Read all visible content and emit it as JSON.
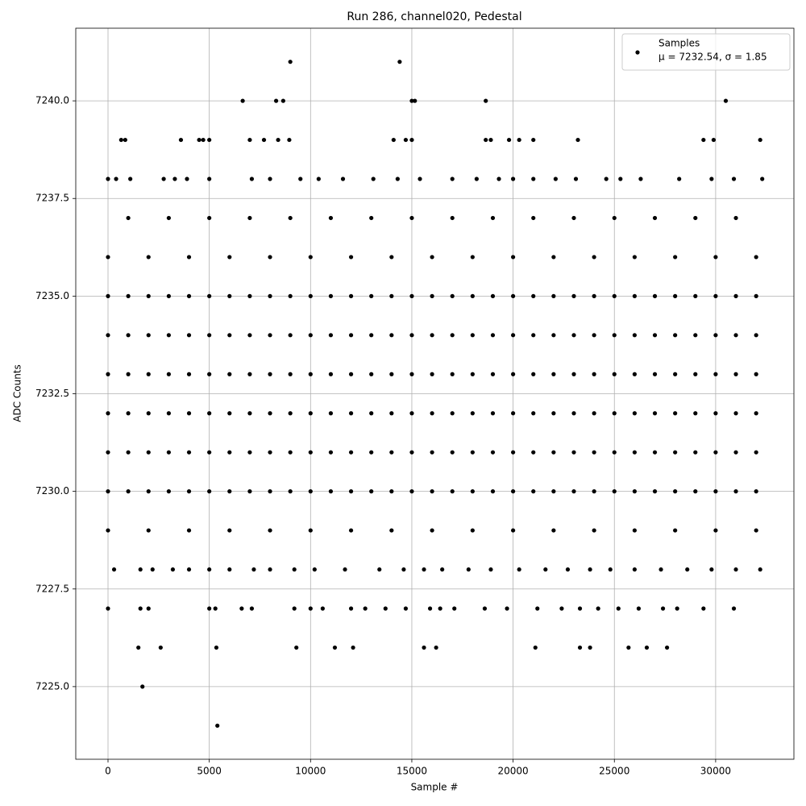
{
  "chart_data": {
    "type": "scatter",
    "title": "Run 286, channel020, Pedestal",
    "x_label": "Sample #",
    "y_label": "ADC Counts",
    "legend_note": "μ = 7232.54, σ = 1.85",
    "legend_loc": "upper right",
    "grid": true,
    "xlim": [
      -1592,
      33864
    ],
    "ylim": [
      7223.14,
      7241.86
    ],
    "xticks": [
      0,
      5000,
      10000,
      15000,
      20000,
      25000,
      30000
    ],
    "yticks": [
      {
        "value": 7225,
        "label": "7225.0"
      },
      {
        "value": 7227.5,
        "label": "7227.5"
      },
      {
        "value": 7230,
        "label": "7230.0"
      },
      {
        "value": 7232.5,
        "label": "7232.5"
      },
      {
        "value": 7235,
        "label": "7235.0"
      },
      {
        "value": 7237.5,
        "label": "7237.5"
      },
      {
        "value": 7240,
        "label": "7240.0"
      }
    ],
    "series": [
      {
        "name": "Samples",
        "color": "#000000",
        "x": [
          0,
          1000,
          2000,
          3000,
          4000,
          5000,
          6000,
          7000,
          8000,
          9000,
          10000,
          11000,
          12000,
          13000,
          14000,
          15000,
          16000,
          17000,
          18000,
          19000,
          20000,
          21000,
          22000,
          23000,
          24000,
          25000,
          26000,
          27000,
          28000,
          29000,
          30000,
          31000,
          32000,
          0,
          1000,
          2000,
          3000,
          4000,
          5000,
          6000,
          7000,
          8000,
          9000,
          10000,
          11000,
          12000,
          13000,
          14000,
          15000,
          16000,
          17000,
          18000,
          19000,
          20000,
          21000,
          22000,
          23000,
          24000,
          25000,
          26000,
          27000,
          28000,
          29000,
          30000,
          31000,
          32000,
          0,
          1000,
          2000,
          3000,
          4000,
          5000,
          6000,
          7000,
          8000,
          9000,
          10000,
          11000,
          12000,
          13000,
          14000,
          15000,
          16000,
          17000,
          18000,
          19000,
          20000,
          21000,
          22000,
          23000,
          24000,
          25000,
          26000,
          27000,
          28000,
          29000,
          30000,
          31000,
          32000,
          0,
          1000,
          2000,
          3000,
          4000,
          5000,
          6000,
          7000,
          8000,
          9000,
          10000,
          11000,
          12000,
          13000,
          14000,
          15000,
          16000,
          17000,
          18000,
          19000,
          20000,
          21000,
          22000,
          23000,
          24000,
          25000,
          26000,
          27000,
          28000,
          29000,
          30000,
          31000,
          32000,
          0,
          1000,
          2000,
          3000,
          4000,
          5000,
          6000,
          7000,
          8000,
          9000,
          10000,
          11000,
          12000,
          13000,
          14000,
          15000,
          16000,
          17000,
          18000,
          19000,
          20000,
          21000,
          22000,
          23000,
          24000,
          25000,
          26000,
          27000,
          28000,
          29000,
          30000,
          31000,
          32000,
          0,
          1000,
          2000,
          3000,
          4000,
          5000,
          6000,
          7000,
          8000,
          9000,
          10000,
          11000,
          12000,
          13000,
          14000,
          15000,
          16000,
          17000,
          18000,
          19000,
          20000,
          21000,
          22000,
          23000,
          24000,
          25000,
          26000,
          27000,
          28000,
          29000,
          30000,
          31000,
          32000,
          0,
          2000,
          4000,
          6000,
          8000,
          10000,
          12000,
          14000,
          16000,
          18000,
          20000,
          22000,
          24000,
          26000,
          28000,
          30000,
          32000,
          0,
          2000,
          4000,
          6000,
          8000,
          10000,
          12000,
          14000,
          16000,
          18000,
          20000,
          22000,
          24000,
          26000,
          28000,
          30000,
          32000,
          1000,
          3000,
          5000,
          7000,
          9000,
          11000,
          13000,
          15000,
          17000,
          19000,
          21000,
          23000,
          25000,
          27000,
          29000,
          31000,
          0,
          400,
          1100,
          2750,
          3300,
          3900,
          5000,
          7100,
          8000,
          9500,
          10400,
          11600,
          13100,
          14300,
          15400,
          17000,
          18200,
          19300,
          20000,
          21000,
          22100,
          23100,
          24600,
          25300,
          26300,
          28200,
          29800,
          30900,
          32300,
          650,
          850,
          3600,
          4500,
          4700,
          5000,
          7000,
          7700,
          8400,
          8950,
          14100,
          14700,
          15000,
          18650,
          18900,
          19800,
          20300,
          21000,
          23200,
          29400,
          29900,
          32200,
          6650,
          8300,
          8650,
          15000,
          15150,
          18650,
          30500,
          9000,
          14400,
          300,
          1600,
          2200,
          3200,
          4000,
          5000,
          6000,
          7200,
          8000,
          9200,
          10200,
          11700,
          13400,
          14600,
          15600,
          16500,
          17800,
          18900,
          20300,
          21600,
          22700,
          23800,
          24800,
          26000,
          27300,
          28600,
          29800,
          31000,
          32200,
          0,
          1600,
          2000,
          5000,
          5300,
          6600,
          7100,
          9200,
          10000,
          10600,
          12000,
          12700,
          13700,
          14700,
          15900,
          16400,
          17100,
          18600,
          19700,
          21200,
          22400,
          23300,
          24200,
          25200,
          26200,
          27400,
          28100,
          29400,
          30900,
          1500,
          2600,
          5350,
          9300,
          11200,
          12100,
          15600,
          16200,
          21100,
          23300,
          23800,
          25700,
          26600,
          27600,
          1700,
          5400
        ],
        "values": [
          7230,
          7230,
          7230,
          7230,
          7230,
          7230,
          7230,
          7230,
          7230,
          7230,
          7230,
          7230,
          7230,
          7230,
          7230,
          7230,
          7230,
          7230,
          7230,
          7230,
          7230,
          7230,
          7230,
          7230,
          7230,
          7230,
          7230,
          7230,
          7230,
          7230,
          7230,
          7230,
          7230,
          7231,
          7231,
          7231,
          7231,
          7231,
          7231,
          7231,
          7231,
          7231,
          7231,
          7231,
          7231,
          7231,
          7231,
          7231,
          7231,
          7231,
          7231,
          7231,
          7231,
          7231,
          7231,
          7231,
          7231,
          7231,
          7231,
          7231,
          7231,
          7231,
          7231,
          7231,
          7231,
          7231,
          7232,
          7232,
          7232,
          7232,
          7232,
          7232,
          7232,
          7232,
          7232,
          7232,
          7232,
          7232,
          7232,
          7232,
          7232,
          7232,
          7232,
          7232,
          7232,
          7232,
          7232,
          7232,
          7232,
          7232,
          7232,
          7232,
          7232,
          7232,
          7232,
          7232,
          7232,
          7232,
          7232,
          7233,
          7233,
          7233,
          7233,
          7233,
          7233,
          7233,
          7233,
          7233,
          7233,
          7233,
          7233,
          7233,
          7233,
          7233,
          7233,
          7233,
          7233,
          7233,
          7233,
          7233,
          7233,
          7233,
          7233,
          7233,
          7233,
          7233,
          7233,
          7233,
          7233,
          7233,
          7233,
          7233,
          7234,
          7234,
          7234,
          7234,
          7234,
          7234,
          7234,
          7234,
          7234,
          7234,
          7234,
          7234,
          7234,
          7234,
          7234,
          7234,
          7234,
          7234,
          7234,
          7234,
          7234,
          7234,
          7234,
          7234,
          7234,
          7234,
          7234,
          7234,
          7234,
          7234,
          7234,
          7234,
          7234,
          7235,
          7235,
          7235,
          7235,
          7235,
          7235,
          7235,
          7235,
          7235,
          7235,
          7235,
          7235,
          7235,
          7235,
          7235,
          7235,
          7235,
          7235,
          7235,
          7235,
          7235,
          7235,
          7235,
          7235,
          7235,
          7235,
          7235,
          7235,
          7235,
          7235,
          7235,
          7235,
          7235,
          7229,
          7229,
          7229,
          7229,
          7229,
          7229,
          7229,
          7229,
          7229,
          7229,
          7229,
          7229,
          7229,
          7229,
          7229,
          7229,
          7229,
          7236,
          7236,
          7236,
          7236,
          7236,
          7236,
          7236,
          7236,
          7236,
          7236,
          7236,
          7236,
          7236,
          7236,
          7236,
          7236,
          7236,
          7237,
          7237,
          7237,
          7237,
          7237,
          7237,
          7237,
          7237,
          7237,
          7237,
          7237,
          7237,
          7237,
          7237,
          7237,
          7237,
          7238,
          7238,
          7238,
          7238,
          7238,
          7238,
          7238,
          7238,
          7238,
          7238,
          7238,
          7238,
          7238,
          7238,
          7238,
          7238,
          7238,
          7238,
          7238,
          7238,
          7238,
          7238,
          7238,
          7238,
          7238,
          7238,
          7238,
          7238,
          7238,
          7239,
          7239,
          7239,
          7239,
          7239,
          7239,
          7239,
          7239,
          7239,
          7239,
          7239,
          7239,
          7239,
          7239,
          7239,
          7239,
          7239,
          7239,
          7239,
          7239,
          7239,
          7239,
          7240,
          7240,
          7240,
          7240,
          7240,
          7240,
          7240,
          7241,
          7241,
          7228,
          7228,
          7228,
          7228,
          7228,
          7228,
          7228,
          7228,
          7228,
          7228,
          7228,
          7228,
          7228,
          7228,
          7228,
          7228,
          7228,
          7228,
          7228,
          7228,
          7228,
          7228,
          7228,
          7228,
          7228,
          7228,
          7228,
          7228,
          7228,
          7227,
          7227,
          7227,
          7227,
          7227,
          7227,
          7227,
          7227,
          7227,
          7227,
          7227,
          7227,
          7227,
          7227,
          7227,
          7227,
          7227,
          7227,
          7227,
          7227,
          7227,
          7227,
          7227,
          7227,
          7227,
          7227,
          7227,
          7227,
          7227,
          7226,
          7226,
          7226,
          7226,
          7226,
          7226,
          7226,
          7226,
          7226,
          7226,
          7226,
          7226,
          7226,
          7226,
          7225,
          7224
        ]
      }
    ]
  }
}
